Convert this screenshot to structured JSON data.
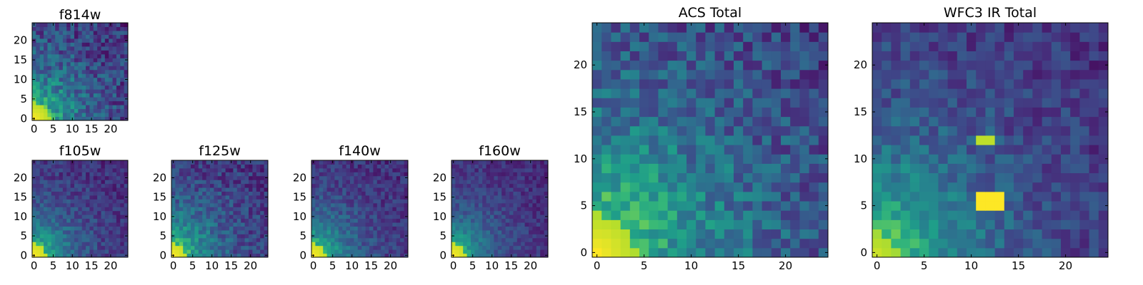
{
  "chart_data": [
    {
      "type": "heatmap",
      "title": "f814w",
      "grid": [
        25,
        25
      ],
      "xlim": [
        -0.5,
        24.5
      ],
      "ylim": [
        -0.5,
        24.5
      ],
      "xticks": [
        0,
        5,
        10,
        15,
        20
      ],
      "yticks": [
        0,
        5,
        10,
        15,
        20
      ],
      "colormap": "viridis",
      "seed": 11,
      "decay": 0.09,
      "noise": 0.32,
      "hotspot": [
        0,
        0,
        4,
        1.0
      ],
      "spot": null
    },
    {
      "type": "heatmap",
      "title": "f105w",
      "grid": [
        25,
        25
      ],
      "xlim": [
        -0.5,
        24.5
      ],
      "ylim": [
        -0.5,
        24.5
      ],
      "xticks": [
        0,
        5,
        10,
        15,
        20
      ],
      "yticks": [
        0,
        5,
        10,
        15,
        20
      ],
      "colormap": "viridis",
      "seed": 23,
      "decay": 0.12,
      "noise": 0.2,
      "hotspot": [
        0,
        0,
        3,
        1.0
      ],
      "spot": null
    },
    {
      "type": "heatmap",
      "title": "f125w",
      "grid": [
        25,
        25
      ],
      "xlim": [
        -0.5,
        24.5
      ],
      "ylim": [
        -0.5,
        24.5
      ],
      "xticks": [
        0,
        5,
        10,
        15,
        20
      ],
      "yticks": [
        0,
        5,
        10,
        15,
        20
      ],
      "colormap": "viridis",
      "seed": 37,
      "decay": 0.1,
      "noise": 0.25,
      "hotspot": [
        0,
        0,
        3,
        1.0
      ],
      "spot": null
    },
    {
      "type": "heatmap",
      "title": "f140w",
      "grid": [
        25,
        25
      ],
      "xlim": [
        -0.5,
        24.5
      ],
      "ylim": [
        -0.5,
        24.5
      ],
      "xticks": [
        0,
        5,
        10,
        15,
        20
      ],
      "yticks": [
        0,
        5,
        10,
        15,
        20
      ],
      "colormap": "viridis",
      "seed": 41,
      "decay": 0.12,
      "noise": 0.2,
      "hotspot": [
        0,
        0,
        3,
        1.0
      ],
      "spot": null
    },
    {
      "type": "heatmap",
      "title": "f160w",
      "grid": [
        25,
        25
      ],
      "xlim": [
        -0.5,
        24.5
      ],
      "ylim": [
        -0.5,
        24.5
      ],
      "xticks": [
        0,
        5,
        10,
        15,
        20
      ],
      "yticks": [
        0,
        5,
        10,
        15,
        20
      ],
      "colormap": "viridis",
      "seed": 53,
      "decay": 0.13,
      "noise": 0.17,
      "hotspot": [
        0,
        0,
        3,
        1.0
      ],
      "spot": null
    },
    {
      "type": "heatmap",
      "title": "ACS Total",
      "grid": [
        25,
        25
      ],
      "xlim": [
        -0.5,
        24.5
      ],
      "ylim": [
        -0.5,
        24.5
      ],
      "xticks": [
        0,
        5,
        10,
        15,
        20
      ],
      "yticks": [
        0,
        5,
        10,
        15,
        20
      ],
      "colormap": "viridis",
      "seed": 67,
      "decay": 0.07,
      "noise": 0.3,
      "hotspot": [
        0,
        0,
        4,
        1.0
      ],
      "spot": null
    },
    {
      "type": "heatmap",
      "title": "WFC3 IR Total",
      "grid": [
        25,
        25
      ],
      "xlim": [
        -0.5,
        24.5
      ],
      "ylim": [
        -0.5,
        24.5
      ],
      "xticks": [
        0,
        5,
        10,
        15,
        20
      ],
      "yticks": [
        0,
        5,
        10,
        15,
        20
      ],
      "colormap": "viridis",
      "seed": 79,
      "decay": 0.1,
      "noise": 0.22,
      "hotspot": [
        0,
        0,
        2,
        0.92
      ],
      "spot": {
        "x0": 11,
        "x1": 13,
        "y0": 5,
        "y1": 6,
        "value": 1.0,
        "extra": [
          [
            12,
            12
          ],
          [
            11,
            12
          ]
        ]
      }
    }
  ]
}
